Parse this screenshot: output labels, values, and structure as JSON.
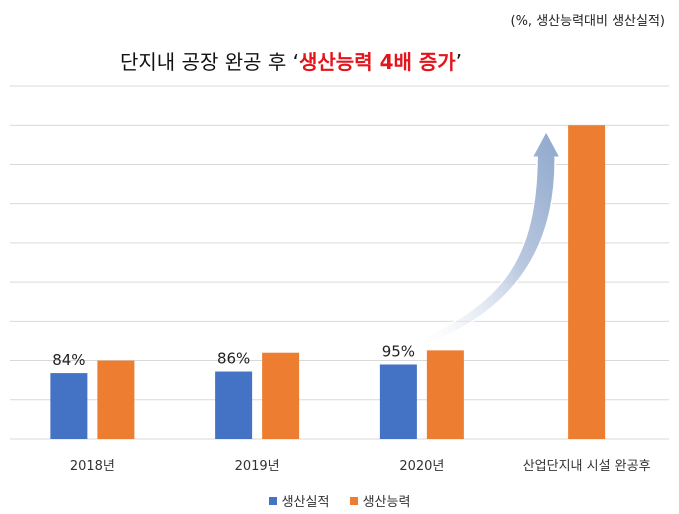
{
  "unit_note": "(%, 생산능력대비 생산실적)",
  "headline": {
    "prefix": "단지내 공장 완공 후 ",
    "quote_open": "‘",
    "highlight": "생산능력 4배 증가",
    "quote_close": "’"
  },
  "colors": {
    "actual": "#4472c4",
    "capacity": "#ed7d31",
    "grid": "#d9d9d9",
    "highlight": "#e3141c",
    "arrow": "#9db2d2"
  },
  "chart_data": {
    "type": "bar",
    "categories": [
      "2018년",
      "2019년",
      "2020년",
      "산업단지내 시설 완공후"
    ],
    "series": [
      {
        "name": "생산실적",
        "values": [
          84,
          86,
          95,
          null
        ]
      },
      {
        "name": "생산능력",
        "values": [
          100,
          110,
          113,
          400
        ]
      }
    ],
    "data_labels": [
      {
        "series": 0,
        "index": 0,
        "text": "84%"
      },
      {
        "series": 0,
        "index": 1,
        "text": "86%"
      },
      {
        "series": 0,
        "index": 2,
        "text": "95%"
      }
    ],
    "ylim": [
      0,
      450
    ],
    "grid": true,
    "legend": "bottom-center",
    "annotation": "arrow from 2020년 bars to 산업단지내 시설 완공후 bar"
  }
}
